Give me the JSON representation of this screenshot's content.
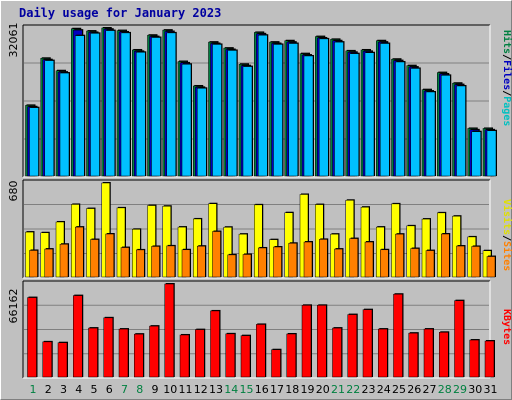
{
  "chart_data": {
    "title": "Daily usage for January 2023",
    "type": "bar",
    "x": [
      1,
      2,
      3,
      4,
      5,
      6,
      7,
      8,
      9,
      10,
      11,
      12,
      13,
      14,
      15,
      16,
      17,
      18,
      19,
      20,
      21,
      22,
      23,
      24,
      25,
      26,
      27,
      28,
      29,
      30,
      31
    ],
    "weekend_color": "#008040",
    "weekday_color": "#000000",
    "weekend_days": [
      1,
      7,
      8,
      14,
      15,
      21,
      22,
      28,
      29
    ],
    "panels": [
      {
        "name": "hits_files_pages",
        "ymax_label": "32061",
        "right_labels": [
          {
            "text": "Pages",
            "color": "#00c0c0"
          },
          {
            "text": "/",
            "color": "#000000"
          },
          {
            "text": "Files",
            "color": "#0000c0"
          },
          {
            "text": "/",
            "color": "#000000"
          },
          {
            "text": "Hits",
            "color": "#008040"
          }
        ],
        "ymax": 32061,
        "series": [
          {
            "name": "Hits",
            "color": "#008040",
            "values": [
              15300,
              25500,
              22800,
              31900,
              31400,
              32061,
              31500,
              27300,
              30500,
              31600,
              24800,
              19500,
              29000,
              27700,
              24200,
              31100,
              29000,
              29300,
              26500,
              30200,
              29600,
              27100,
              27300,
              29300,
              25300,
              23900,
              18700,
              22400,
              20100,
              10300,
              10300
            ]
          },
          {
            "name": "Files",
            "color": "#0000c0",
            "values": [
              15000,
              25200,
              22500,
              31600,
              31100,
              31800,
              31200,
              27000,
              30200,
              31300,
              24500,
              19200,
              28700,
              27400,
              23900,
              30800,
              28700,
              29000,
              26200,
              29900,
              29300,
              26800,
              27000,
              29000,
              25000,
              23600,
              18400,
              22100,
              19800,
              10000,
              10000
            ]
          },
          {
            "name": "Pages",
            "color": "#00c0ff",
            "values": [
              14800,
              25000,
              22300,
              30400,
              30900,
              31500,
              31000,
              26800,
              30000,
              31000,
              24200,
              19000,
              28500,
              27200,
              23700,
              30500,
              28500,
              28700,
              26000,
              29700,
              29000,
              26500,
              26700,
              28700,
              24700,
              23300,
              18200,
              21800,
              19500,
              9600,
              9800
            ]
          }
        ]
      },
      {
        "name": "visits_sites",
        "ymax_label": "680",
        "right_labels": [
          {
            "text": "Sites",
            "color": "#ff8000"
          },
          {
            "text": "/",
            "color": "#000000"
          },
          {
            "text": "Visits",
            "color": "#e0e000"
          }
        ],
        "ymax": 680,
        "series": [
          {
            "name": "Visits",
            "color": "#ffff00",
            "values": [
              325,
              320,
              398,
              525,
              495,
              680,
              500,
              345,
              517,
              512,
              361,
              420,
              530,
              360,
              310,
              522,
              270,
              465,
              597,
              524,
              310,
              555,
              505,
              361,
              529,
              370,
              419,
              464,
              440,
              290,
              190
            ]
          },
          {
            "name": "Sites",
            "color": "#ff8000",
            "values": [
              192,
              202,
              237,
              361,
              271,
              311,
              213,
              196,
              221,
              225,
              197,
              223,
              329,
              160,
              163,
              210,
              217,
              244,
              253,
              272,
              202,
              278,
              253,
              197,
              310,
              206,
              191,
              311,
              224,
              221,
              148
            ]
          }
        ]
      },
      {
        "name": "kbytes",
        "ymax_label": "66162",
        "right_labels": [
          {
            "text": "KBytes",
            "color": "#ff0000"
          }
        ],
        "ymax": 66162,
        "series": [
          {
            "name": "KBytes",
            "color": "#ff0000",
            "values": [
              56500,
              25000,
              24400,
              57900,
              34800,
              42100,
              34100,
              30500,
              36200,
              66162,
              29900,
              33700,
              47000,
              30700,
              29400,
              37400,
              19400,
              30600,
              51000,
              51000,
              34800,
              44400,
              47900,
              34100,
              58900,
              31200,
              34100,
              31800,
              54300,
              26300,
              25600
            ]
          }
        ]
      }
    ]
  }
}
